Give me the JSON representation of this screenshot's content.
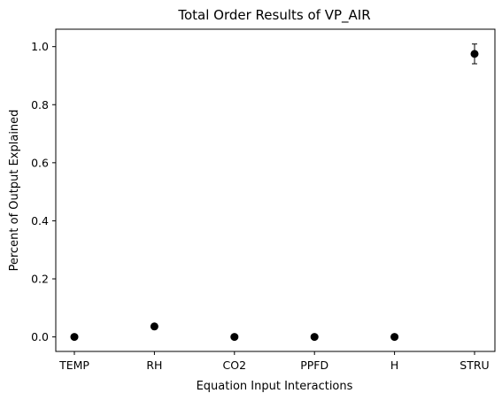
{
  "chart_data": {
    "type": "scatter",
    "title": "Total Order Results of VP_AIR",
    "xlabel": "Equation Input Interactions",
    "ylabel": "Percent of Output Explained",
    "categories": [
      "TEMP",
      "RH",
      "CO2",
      "PPFD",
      "H",
      "STRU"
    ],
    "values": [
      0.0,
      0.036,
      0.0,
      0.0,
      0.0,
      0.975
    ],
    "errors": [
      0.0,
      0.0,
      0.0,
      0.0,
      0.0,
      0.034
    ],
    "ylim": [
      -0.05,
      1.06
    ],
    "yticks": [
      0.0,
      0.2,
      0.4,
      0.6,
      0.8,
      1.0
    ],
    "ytick_labels": [
      "0.0",
      "0.2",
      "0.4",
      "0.6",
      "0.8",
      "1.0"
    ],
    "grid": false,
    "marker_color": "#000000"
  }
}
